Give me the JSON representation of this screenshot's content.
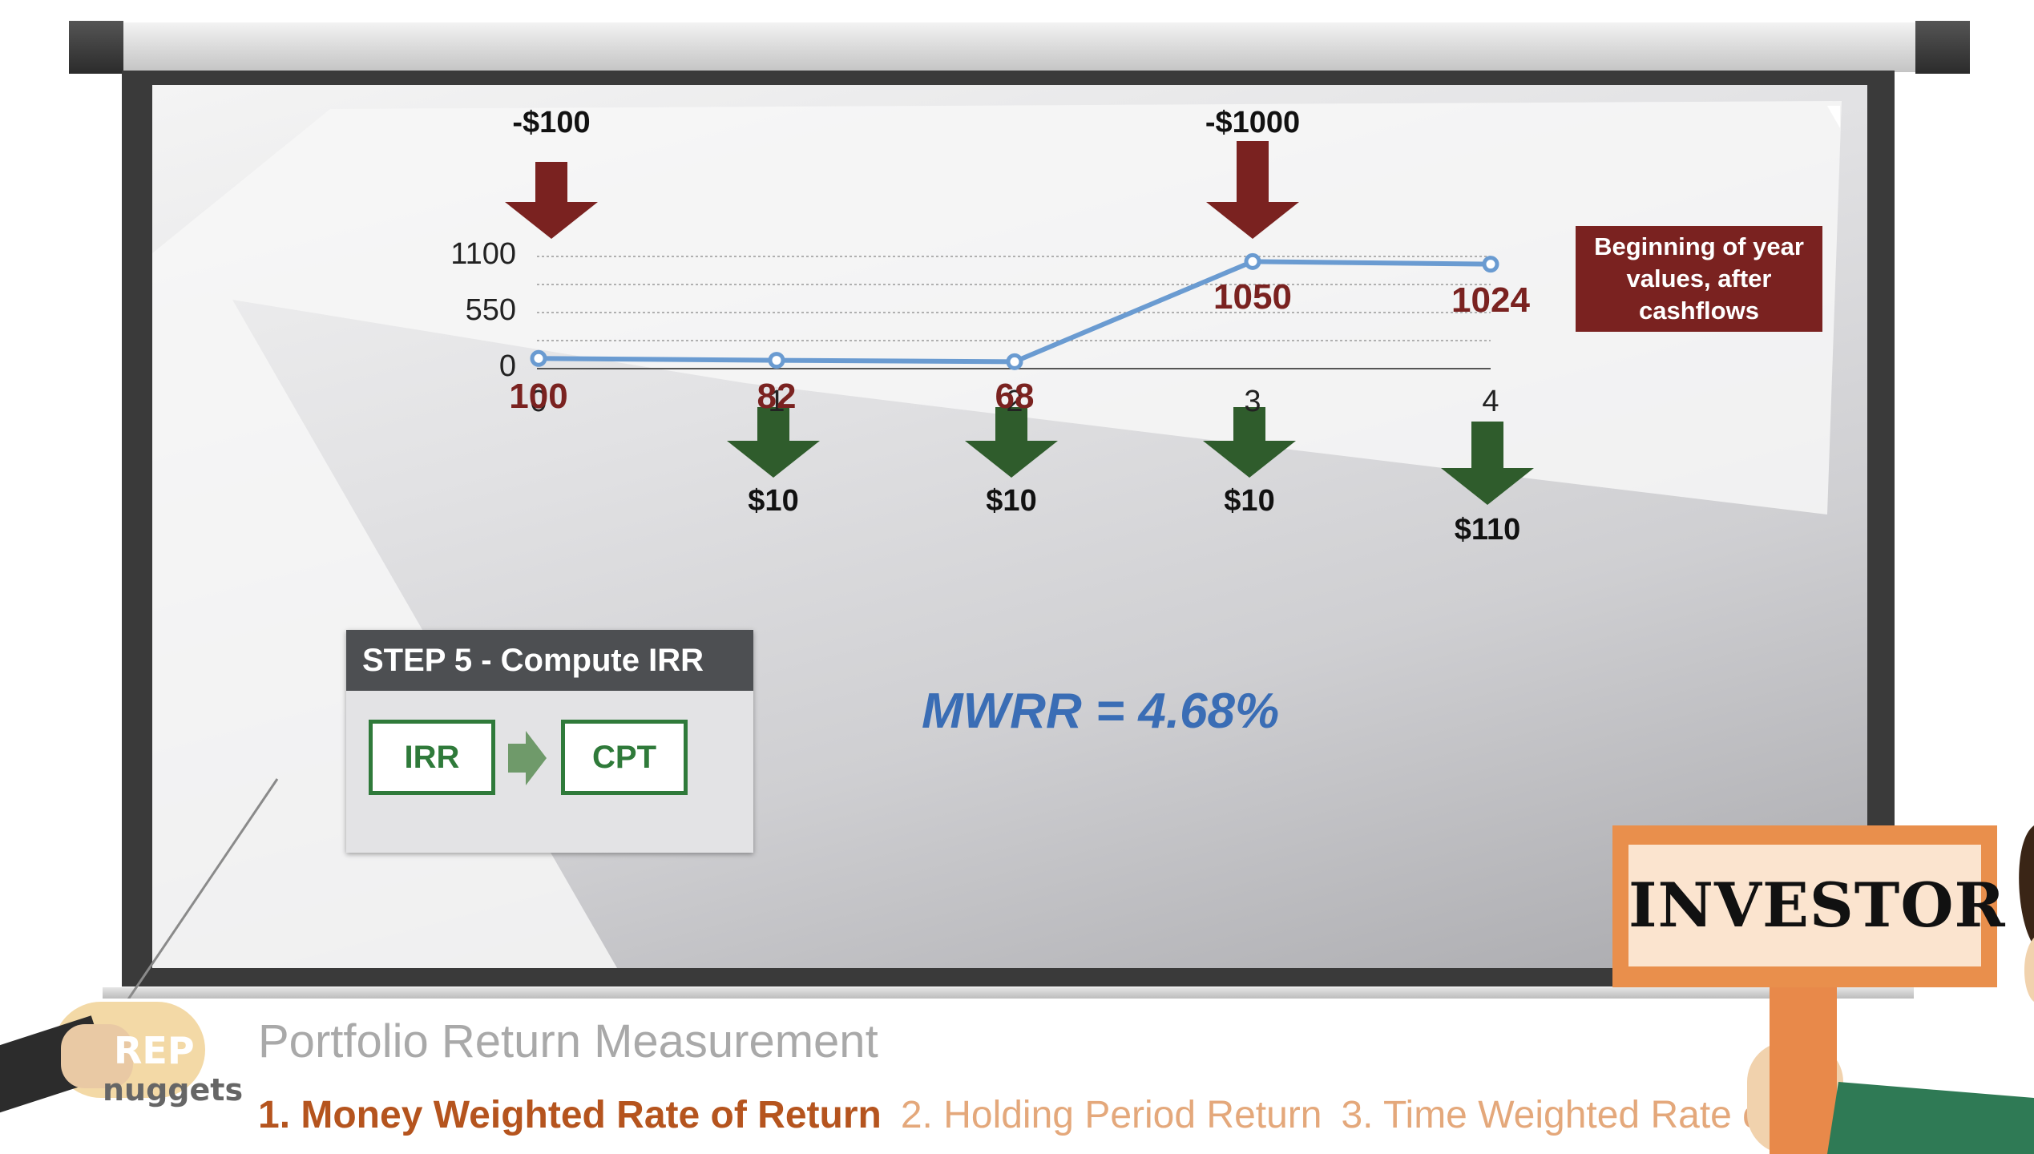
{
  "chart_data": {
    "type": "line",
    "x": [
      0,
      1,
      2,
      3,
      4
    ],
    "values": [
      100,
      82,
      68,
      1050,
      1024
    ],
    "ylim": [
      0,
      1100
    ],
    "yticks": [
      "1100",
      "550",
      "0"
    ],
    "xticks": [
      "0",
      "1",
      "2",
      "3",
      "4"
    ],
    "point_labels": [
      "100",
      "82",
      "68",
      "1050",
      "1024"
    ],
    "investments": [
      {
        "x": 0,
        "label": "-$100"
      },
      {
        "x": 3,
        "label": "-$1000"
      }
    ],
    "withdrawals": [
      {
        "x": 1,
        "label": "$10"
      },
      {
        "x": 2,
        "label": "$10"
      },
      {
        "x": 3,
        "label": "$10"
      },
      {
        "x": 4,
        "label": "$110"
      }
    ],
    "legend": "Beginning of year values, after cashflows",
    "line_color": "#6a9bd1"
  },
  "step": {
    "title": "STEP 5 - Compute IRR",
    "key1": "IRR",
    "key2": "CPT"
  },
  "result": "MWRR = 4.68%",
  "footer": {
    "title": "Portfolio Return Measurement",
    "nav": [
      "1. Money Weighted Rate of Return",
      "2. Holding Period Return",
      "3. Time Weighted Rate o"
    ]
  },
  "logo": {
    "line1": "REP",
    "line2": "nuggets"
  },
  "sign": "INVESTOR",
  "colors": {
    "dark_red": "#7a2220",
    "green": "#2f5c2c",
    "blue": "#3a6db5",
    "orange": "#e98f4c"
  }
}
